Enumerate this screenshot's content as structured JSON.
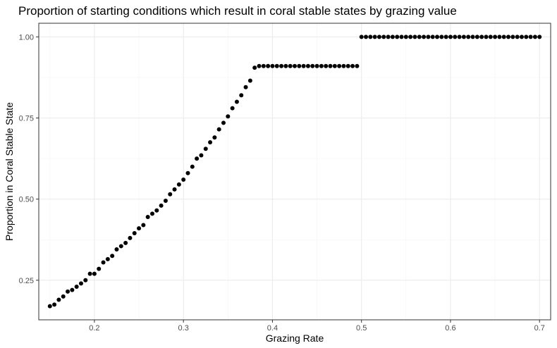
{
  "chart_data": {
    "type": "scatter",
    "title": "Proportion of starting conditions which result in coral stable states by grazing value",
    "xlabel": "Grazing Rate",
    "ylabel": "Proportion in Coral Stable State",
    "xlim": [
      0.1375,
      0.7125
    ],
    "ylim": [
      0.128,
      1.042
    ],
    "xticks": [
      0.2,
      0.3,
      0.4,
      0.5,
      0.6,
      0.7
    ],
    "xtick_labels": [
      "0.2",
      "0.3",
      "0.4",
      "0.5",
      "0.6",
      "0.7"
    ],
    "yticks": [
      0.25,
      0.5,
      0.75,
      1.0
    ],
    "ytick_labels": [
      "0.25",
      "0.50",
      "0.75",
      "1.00"
    ],
    "grid": true,
    "legend": "none",
    "point_color": "#000000",
    "x": [
      0.15,
      0.155,
      0.16,
      0.165,
      0.17,
      0.175,
      0.18,
      0.185,
      0.19,
      0.195,
      0.2,
      0.205,
      0.21,
      0.215,
      0.22,
      0.225,
      0.23,
      0.235,
      0.24,
      0.245,
      0.25,
      0.255,
      0.26,
      0.265,
      0.27,
      0.275,
      0.28,
      0.285,
      0.29,
      0.295,
      0.3,
      0.305,
      0.31,
      0.315,
      0.32,
      0.325,
      0.33,
      0.335,
      0.34,
      0.345,
      0.35,
      0.355,
      0.36,
      0.365,
      0.37,
      0.375,
      0.38,
      0.385,
      0.39,
      0.395,
      0.4,
      0.405,
      0.41,
      0.415,
      0.42,
      0.425,
      0.43,
      0.435,
      0.44,
      0.445,
      0.45,
      0.455,
      0.46,
      0.465,
      0.47,
      0.475,
      0.48,
      0.485,
      0.49,
      0.495,
      0.5,
      0.505,
      0.51,
      0.515,
      0.52,
      0.525,
      0.53,
      0.535,
      0.54,
      0.545,
      0.55,
      0.555,
      0.56,
      0.565,
      0.57,
      0.575,
      0.58,
      0.585,
      0.59,
      0.595,
      0.6,
      0.605,
      0.61,
      0.615,
      0.62,
      0.625,
      0.63,
      0.635,
      0.64,
      0.645,
      0.65,
      0.655,
      0.66,
      0.665,
      0.67,
      0.675,
      0.68,
      0.685,
      0.69,
      0.695,
      0.7
    ],
    "y": [
      0.17,
      0.175,
      0.19,
      0.2,
      0.215,
      0.22,
      0.23,
      0.24,
      0.25,
      0.27,
      0.27,
      0.285,
      0.305,
      0.315,
      0.325,
      0.345,
      0.355,
      0.365,
      0.38,
      0.395,
      0.41,
      0.42,
      0.445,
      0.455,
      0.465,
      0.48,
      0.495,
      0.515,
      0.53,
      0.545,
      0.56,
      0.58,
      0.6,
      0.625,
      0.635,
      0.655,
      0.675,
      0.69,
      0.715,
      0.735,
      0.755,
      0.78,
      0.8,
      0.82,
      0.845,
      0.865,
      0.905,
      0.91,
      0.91,
      0.91,
      0.91,
      0.91,
      0.91,
      0.91,
      0.91,
      0.91,
      0.91,
      0.91,
      0.91,
      0.91,
      0.91,
      0.91,
      0.91,
      0.91,
      0.91,
      0.91,
      0.91,
      0.91,
      0.91,
      0.91,
      1.0,
      1.0,
      1.0,
      1.0,
      1.0,
      1.0,
      1.0,
      1.0,
      1.0,
      1.0,
      1.0,
      1.0,
      1.0,
      1.0,
      1.0,
      1.0,
      1.0,
      1.0,
      1.0,
      1.0,
      1.0,
      1.0,
      1.0,
      1.0,
      1.0,
      1.0,
      1.0,
      1.0,
      1.0,
      1.0,
      1.0,
      1.0,
      1.0,
      1.0,
      1.0,
      1.0,
      1.0,
      1.0,
      1.0,
      1.0,
      1.0
    ]
  }
}
